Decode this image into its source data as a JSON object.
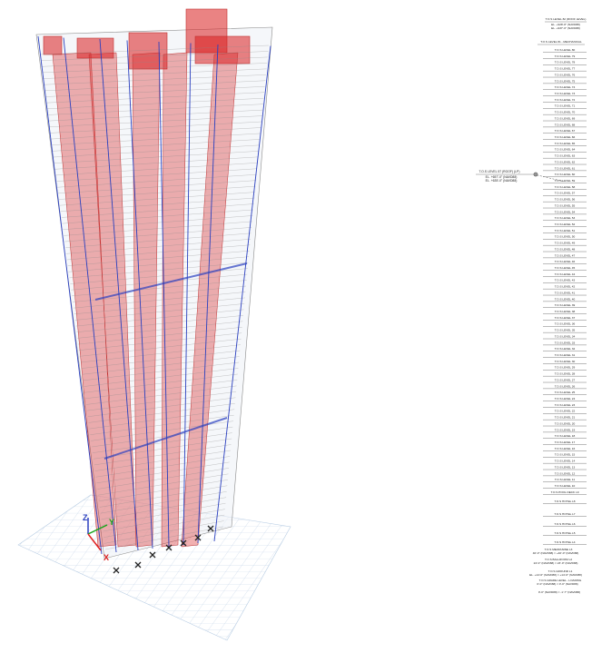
{
  "model_view": {
    "axes": {
      "z": "Z",
      "y": "Y",
      "x": "X"
    },
    "colors": {
      "core_fill": "#d81e1e",
      "column_line": "#2a3fbf",
      "slab_line": "#8a8a8a",
      "grid_line": "#b7cce3",
      "support": "#222222",
      "axis_z": "#2a3fbf",
      "axis_y": "#1aa51a",
      "axis_x": "#e02020"
    }
  },
  "elevation": {
    "top_labels": [
      "T.O.S LEVEL 82 (ROOF LEVEL)",
      "EL. +928'-8\" (NAVD88)",
      "EL. +937'-0\" (NAVD88)"
    ],
    "mech_label": "T.O.S LEVEL 81 - MECHANICAL",
    "levels": [
      "T.O.S LEVEL 80",
      "T.O.S LEVEL 79",
      "T.O.S LEVEL 78",
      "T.O.S LEVEL 77",
      "T.O.S LEVEL 76",
      "T.O.S LEVEL 75",
      "T.O.S LEVEL 74",
      "T.O.S LEVEL 73",
      "T.O.S LEVEL 72",
      "T.O.S LEVEL 71",
      "T.O.S LEVEL 70",
      "T.O.S LEVEL 69",
      "T.O.S LEVEL 68",
      "T.O.S LEVEL 67",
      "T.O.S LEVEL 66",
      "T.O.S LEVEL 65",
      "T.O.S LEVEL 64",
      "T.O.S LEVEL 63",
      "T.O.S LEVEL 62",
      "T.O.S LEVEL 61",
      "T.O.S LEVEL 60",
      "T.O.S LEVEL 59",
      "T.O.S LEVEL 58",
      "T.O.S LEVEL 57",
      "T.O.S LEVEL 56",
      "T.O.S LEVEL 55",
      "T.O.S LEVEL 54",
      "T.O.S LEVEL 53",
      "T.O.S LEVEL 52",
      "T.O.S LEVEL 51",
      "T.O.S LEVEL 50",
      "T.O.S LEVEL 49",
      "T.O.S LEVEL 48",
      "T.O.S LEVEL 47",
      "T.O.S LEVEL 46",
      "T.O.S LEVEL 45",
      "T.O.S LEVEL 44",
      "T.O.S LEVEL 43",
      "T.O.S LEVEL 42",
      "T.O.S LEVEL 41",
      "T.O.S LEVEL 40",
      "T.O.S LEVEL 39",
      "T.O.S LEVEL 38",
      "T.O.S LEVEL 37",
      "T.O.S LEVEL 36",
      "T.O.S LEVEL 35",
      "T.O.S LEVEL 34",
      "T.O.S LEVEL 33",
      "T.O.S LEVEL 32",
      "T.O.S LEVEL 31",
      "T.O.S LEVEL 30",
      "T.O.S LEVEL 29",
      "T.O.S LEVEL 28",
      "T.O.S LEVEL 27",
      "T.O.S LEVEL 26",
      "T.O.S LEVEL 25",
      "T.O.S LEVEL 24",
      "T.O.S LEVEL 23",
      "T.O.S LEVEL 22",
      "T.O.S LEVEL 21",
      "T.O.S LEVEL 20",
      "T.O.S LEVEL 19",
      "T.O.S LEVEL 18",
      "T.O.S LEVEL 17",
      "T.O.S LEVEL 16",
      "T.O.S LEVEL 15",
      "T.O.S LEVEL 14",
      "T.O.S LEVEL 13",
      "T.O.S LEVEL 12",
      "T.O.S LEVEL 11",
      "T.O.S LEVEL 10"
    ],
    "lower_levels": [
      "T.O.S POOL DECK L9",
      "T.O.S HOTEL L8",
      "T.O.S HOTEL L7",
      "T.O.S HOTEL L6",
      "T.O.S HOTEL L5",
      "T.O.S HOTEL L4"
    ],
    "bottom_labels": [
      "T.O.S MEZZANINE L3",
      "40'-0\" (NAVD88) = +40'-0\" (NAVD88)",
      "T.O.S BALLROOM L2",
      "24'-0\" (NAVD88) = 23'-0\" (NAVD88)",
      "T.O.S GROUND L1",
      "EL. +14'-0\" (NAVD88) = +14'-0\" (NAVD88)",
      "T.O.S GRADE LEVEL - LOADING",
      "0'-0\" (NAVD88) = 0'-0\" (NAVD88)",
      "0'-0\" (NAVD88) = -1'-7\" (NAVD88)"
    ],
    "annotation": {
      "lines": [
        "T.O.S LEVEL 57 (ROOF) (LP)",
        "EL. +657'-0\" (NAVD88)",
        "EL. +635'-0\" (NAVD88)"
      ]
    }
  }
}
